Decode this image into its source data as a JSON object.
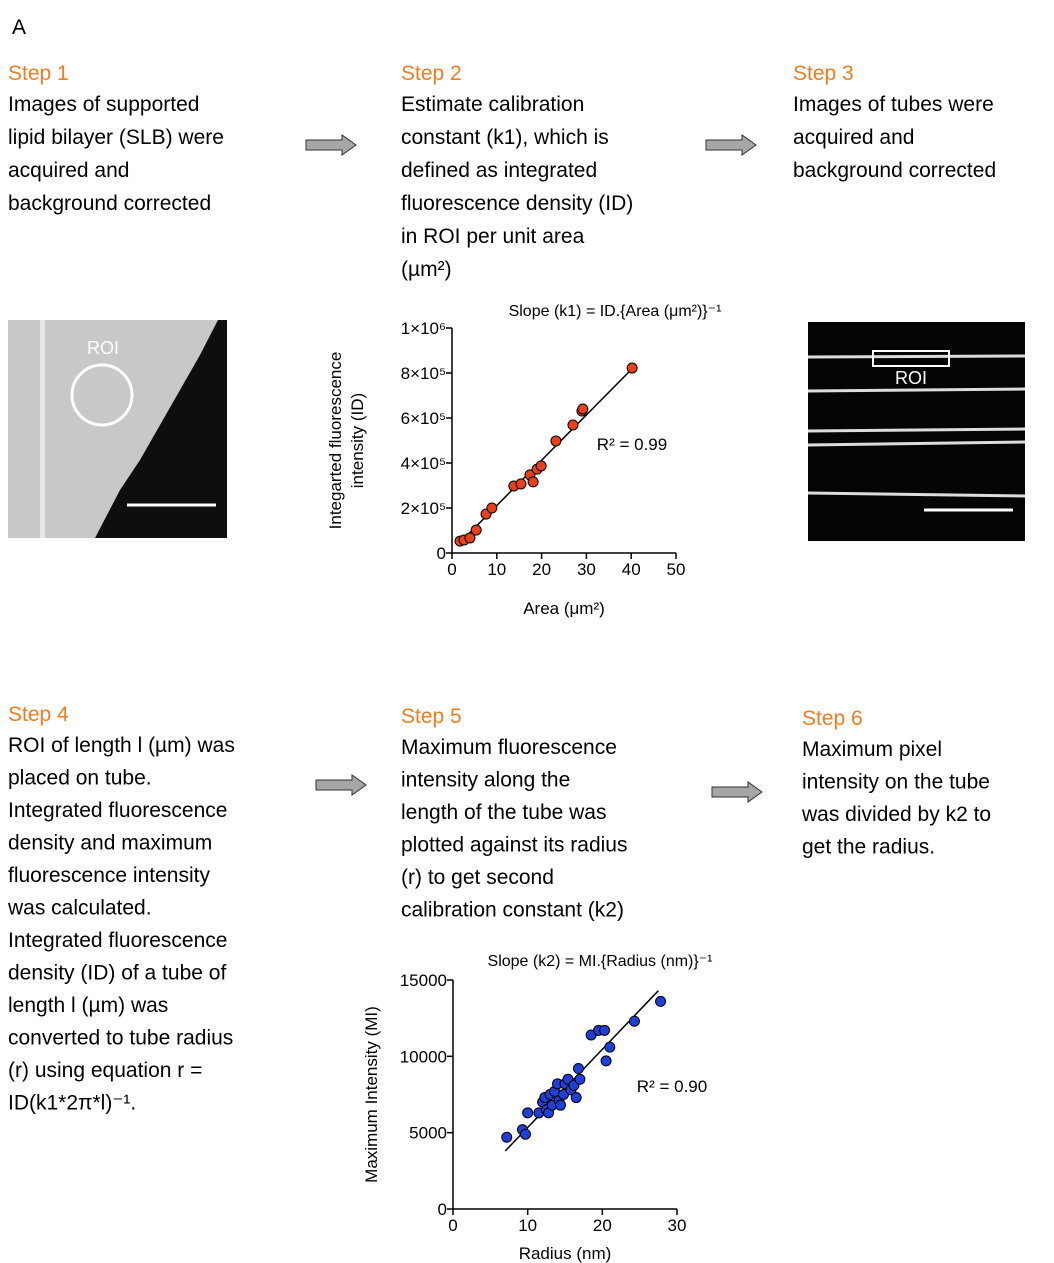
{
  "panel_label": "A",
  "steps": [
    {
      "title": "Step 1",
      "lines": [
        "Images of supported",
        "lipid bilayer (SLB) were",
        "acquired and",
        "background corrected"
      ]
    },
    {
      "title": "Step 2",
      "lines": [
        "Estimate calibration",
        "constant (k1), which is",
        "defined as integrated",
        "fluorescence density (ID)",
        "in ROI per unit area",
        "(µm²)"
      ]
    },
    {
      "title": "Step 3",
      "lines": [
        "Images of tubes were",
        "acquired and",
        "background corrected"
      ]
    },
    {
      "title": "Step 4",
      "lines": [
        "ROI of length l (µm) was",
        "placed on tube.",
        "Integrated fluorescence",
        "density and maximum",
        "fluorescence intensity",
        "was calculated.",
        "Integrated fluorescence",
        "density (ID) of a tube of",
        "length l (µm) was",
        "converted to tube radius",
        "(r) using equation r =",
        "ID(k1*2π*l)⁻¹."
      ]
    },
    {
      "title": "Step 5",
      "lines": [
        "Maximum fluorescence",
        "intensity along the",
        "length of the tube was",
        "plotted against its radius",
        "(r) to get second",
        "calibration constant (k2)"
      ]
    },
    {
      "title": "Step 6",
      "lines": [
        "Maximum pixel",
        "intensity on the tube",
        "was divided by k2 to",
        "get the radius."
      ]
    }
  ],
  "images": [
    {
      "label": "ROI"
    },
    {
      "label": "ROI"
    }
  ],
  "chart_data": [
    {
      "type": "scatter",
      "title": "Slope (k1) = ID.{Area (μm²)}⁻¹",
      "x_label": "Area (μm²)",
      "y_label": [
        "Integarted fluorescence",
        "intensity (ID)"
      ],
      "annotation": "R² = 0.99",
      "color": "#e8401c",
      "xlim": [
        0,
        50
      ],
      "xticks": [
        0,
        10,
        20,
        30,
        40,
        50
      ],
      "ylim": [
        0,
        1000000
      ],
      "yticks": [
        0,
        {
          "value": 200000,
          "label": "2×10⁵"
        },
        {
          "value": 400000,
          "label": "4×10⁵"
        },
        {
          "value": 600000,
          "label": "6×10⁵"
        },
        {
          "value": 800000,
          "label": "8×10⁵"
        },
        {
          "value": 1000000,
          "label": "1×10⁶"
        }
      ],
      "x": [
        1.8,
        2.7,
        4.0,
        5.4,
        7.6,
        8.9,
        13.8,
        15.4,
        17.4,
        18.1,
        19.0,
        19.9,
        23.2,
        27.0,
        29.0,
        29.2,
        40.2
      ],
      "y": [
        53000,
        58000,
        67000,
        102000,
        173000,
        200000,
        298000,
        307000,
        347000,
        316000,
        373000,
        387000,
        498000,
        569000,
        631000,
        640000,
        822000
      ],
      "fit": {
        "x": [
          1.5,
          41
        ],
        "y": [
          40000,
          835000
        ]
      }
    },
    {
      "type": "scatter",
      "title": "Slope (k2) = MI.{Radius (nm)}⁻¹",
      "x_label": "Radius (nm)",
      "y_label": [
        "Maximum Intensity (MI)"
      ],
      "annotation": "R² = 0.90",
      "color": "#1f3fd6",
      "xlim": [
        0,
        30
      ],
      "xticks": [
        0,
        10,
        20,
        30
      ],
      "ylim": [
        0,
        15000
      ],
      "yticks": [
        0,
        5000,
        10000,
        15000
      ],
      "x": [
        7.2,
        9.3,
        9.7,
        10.0,
        11.5,
        12.0,
        12.3,
        12.5,
        12.8,
        13.0,
        13.3,
        13.6,
        14.0,
        14.2,
        14.4,
        14.8,
        15.0,
        15.4,
        15.8,
        16.2,
        16.5,
        16.8,
        17.0,
        18.5,
        19.5,
        20.3,
        20.5,
        21.0,
        24.3,
        27.8
      ],
      "y": [
        4700,
        5200,
        4900,
        6300,
        6300,
        7000,
        7300,
        6500,
        6300,
        7500,
        6800,
        7700,
        8200,
        7100,
        6800,
        7500,
        8200,
        8500,
        7800,
        8100,
        7300,
        9200,
        8500,
        11400,
        11700,
        11700,
        9700,
        10600,
        12300,
        13600
      ],
      "fit": {
        "x": [
          7,
          27.5
        ],
        "y": [
          3800,
          14300
        ]
      }
    }
  ]
}
